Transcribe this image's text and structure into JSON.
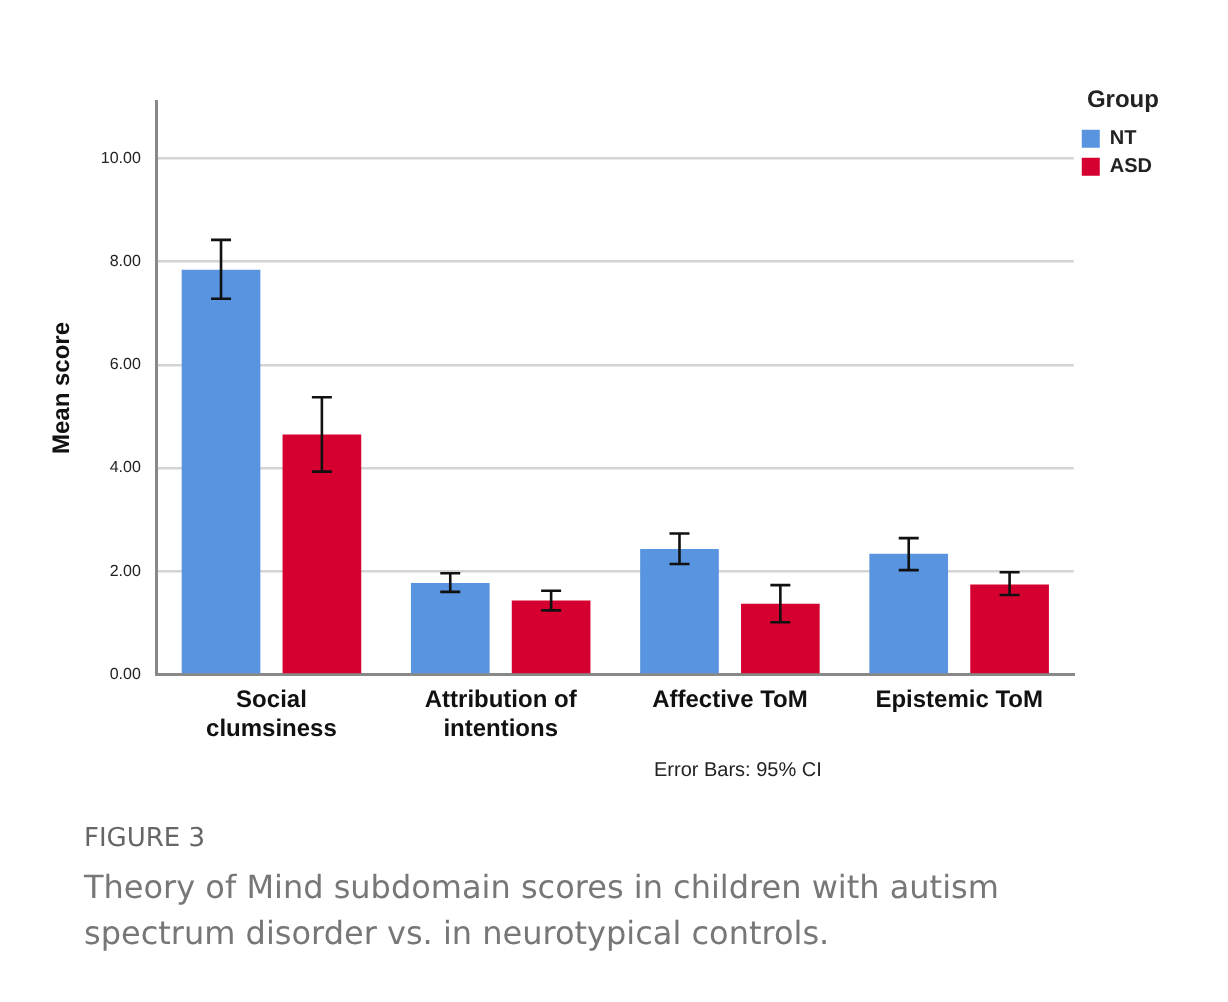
{
  "chart_data": {
    "type": "bar",
    "title": "FIGURE 3",
    "subtitle": "Theory of Mind subdomain scores in children with autism spectrum disorder vs. in neurotypical controls.",
    "ylabel": "Mean score",
    "legend_title": "Group",
    "annotations": [
      "Error Bars: 95% CI"
    ],
    "categories": [
      "Social clumsiness",
      "Attribution of intentions",
      "Affective ToM",
      "Epistemic ToM"
    ],
    "series": [
      {
        "name": "NT",
        "color": "#5894e0",
        "values": [
          7.84,
          1.77,
          2.43,
          2.34
        ],
        "errors": [
          [
            7.28,
            8.42
          ],
          [
            1.6,
            1.96
          ],
          [
            2.14,
            2.73
          ],
          [
            2.02,
            2.64
          ]
        ]
      },
      {
        "name": "ASD",
        "color": "#d5002f",
        "values": [
          4.65,
          1.43,
          1.37,
          1.74
        ],
        "errors": [
          [
            3.93,
            5.37
          ],
          [
            1.24,
            1.62
          ],
          [
            1.01,
            1.73
          ],
          [
            1.54,
            1.98
          ]
        ]
      }
    ],
    "ylim": [
      0,
      11.1
    ],
    "yticks": [
      {
        "value": 0,
        "label": "0.00"
      },
      {
        "value": 2,
        "label": "2.00"
      },
      {
        "value": 4,
        "label": "4.00"
      },
      {
        "value": 6,
        "label": "6.00"
      },
      {
        "value": 8,
        "label": "8.00"
      },
      {
        "value": 10,
        "label": "10.00"
      }
    ],
    "grid": "y",
    "legend": "top right"
  }
}
